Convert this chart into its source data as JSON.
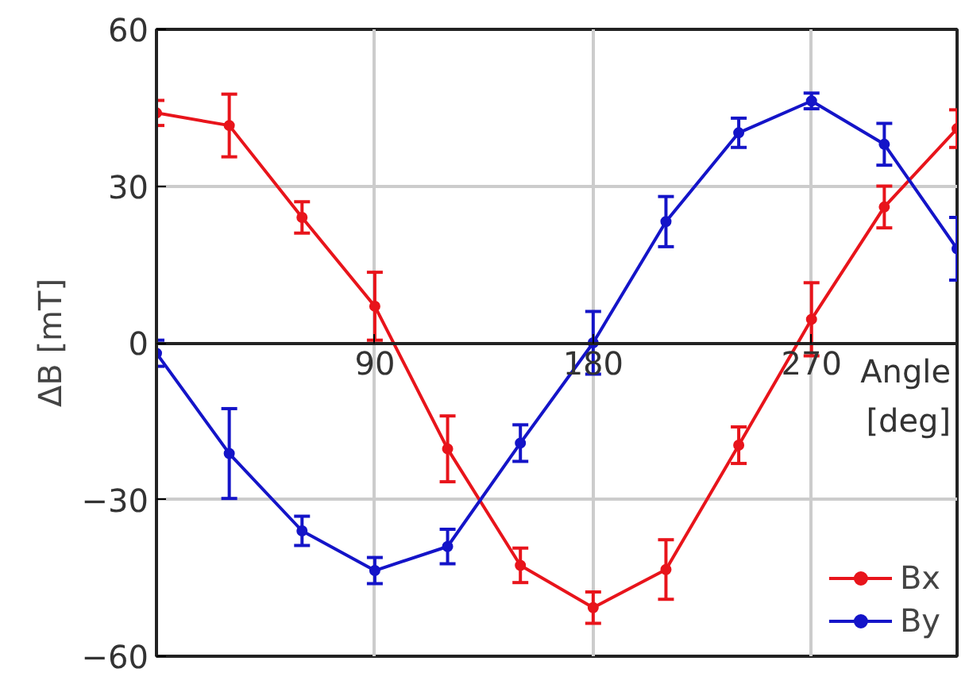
{
  "chart_data": {
    "type": "line",
    "xlabel": "Angle [deg]",
    "ylabel": "ΔB [mT]",
    "x": [
      0,
      30,
      60,
      90,
      120,
      150,
      180,
      210,
      240,
      270,
      300,
      330
    ],
    "series": [
      {
        "name": "Bx",
        "color": "#e8141b",
        "values": [
          44,
          41.6,
          24,
          7,
          -20.3,
          -42.6,
          -50.7,
          -43.4,
          -19.6,
          4.5,
          26,
          41
        ],
        "errors": [
          2.4,
          6,
          3,
          6.5,
          6.3,
          3.3,
          3,
          5.7,
          3.5,
          7,
          4,
          3.6
        ]
      },
      {
        "name": "By",
        "color": "#1414c8",
        "values": [
          -2,
          -21.2,
          -36,
          -43.6,
          -39,
          -19.2,
          0,
          23.2,
          40.2,
          46.3,
          38,
          18
        ],
        "errors": [
          2.5,
          8.6,
          2.8,
          2.5,
          3.3,
          3.5,
          6,
          4.8,
          2.8,
          1.5,
          4,
          6
        ]
      }
    ],
    "xlim": [
      0,
      330
    ],
    "ylim": [
      -60,
      60
    ],
    "xticks": [
      90,
      180,
      270
    ],
    "yticks": [
      -60,
      -30,
      0,
      30,
      60
    ],
    "grid": true,
    "legend": "bottom right",
    "marker": "circle",
    "line_style": "solid"
  }
}
